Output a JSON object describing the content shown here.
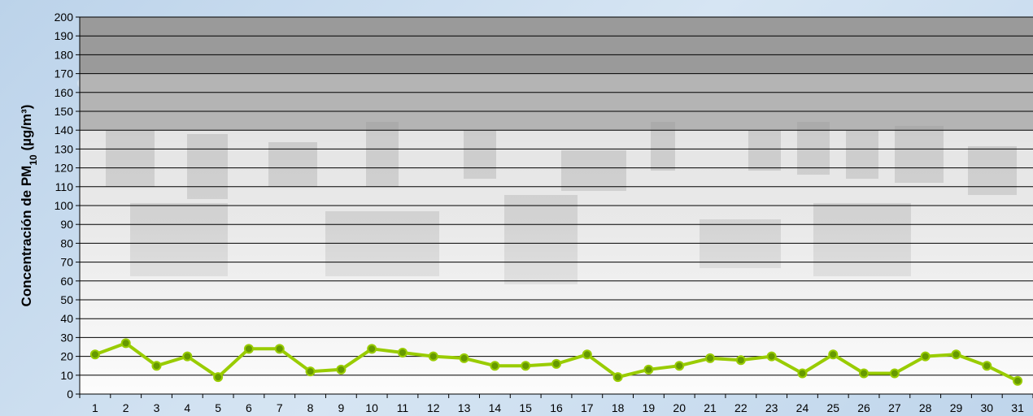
{
  "chart_data": {
    "type": "line",
    "title": "",
    "xlabel": "",
    "ylabel": "Concentración de PM",
    "ylabel_sub": "10",
    "ylabel_unit": " (µg/m³)",
    "ylim": [
      0,
      200
    ],
    "ytick_step": 10,
    "grid": true,
    "legend": "none",
    "colors": {
      "line": "#99cc00",
      "marker_fill": "#669900",
      "marker_edge": "#99cc00",
      "grid": "#000000",
      "band_dark": "#9a9a9a",
      "band_mid": "#b4b4b4",
      "band_light": "#cfcfcf",
      "plot_bg": "#ffffff"
    },
    "x": [
      1,
      2,
      3,
      4,
      5,
      6,
      7,
      8,
      9,
      10,
      11,
      12,
      13,
      14,
      15,
      16,
      17,
      18,
      19,
      20,
      21,
      22,
      23,
      24,
      25,
      26,
      27,
      28,
      29,
      30,
      31
    ],
    "series": [
      {
        "values": [
          21,
          27,
          15,
          20,
          9,
          24,
          24,
          12,
          13,
          24,
          22,
          20,
          19,
          15,
          15,
          16,
          21,
          9,
          13,
          15,
          19,
          18,
          20,
          11,
          21,
          11,
          11,
          20,
          21,
          15,
          7
        ]
      }
    ]
  }
}
